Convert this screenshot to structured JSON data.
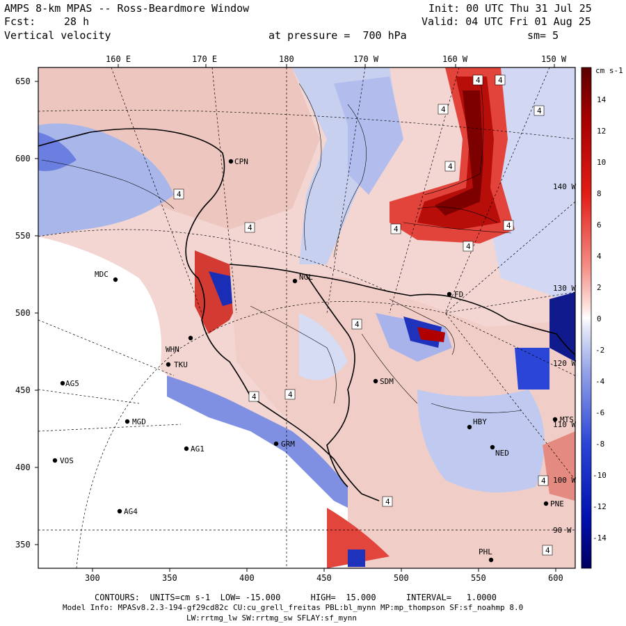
{
  "header": {
    "title": "AMPS 8-km MPAS -- Ross-Beardmore Window",
    "fcst_label": "Fcst:",
    "fcst_value": "28 h",
    "field": "Vertical velocity",
    "init": "Init: 00 UTC Thu 31 Jul 25",
    "valid": "Valid: 04 UTC Fri 01 Aug 25",
    "pressure": "at pressure =  700 hPa",
    "smooth": "sm= 5"
  },
  "axes": {
    "top_ticks": [
      "160 E",
      "170 E",
      "180",
      "170 W",
      "160 W",
      "150 W"
    ],
    "left_ticks": [
      "650",
      "600",
      "550",
      "500",
      "450",
      "400",
      "350"
    ],
    "bottom_ticks": [
      "300",
      "350",
      "400",
      "450",
      "500",
      "550",
      "600"
    ],
    "right_inner_ticks": [
      "140 W",
      "130 W",
      "120 W",
      "110 W",
      "100 W",
      "90 W"
    ]
  },
  "colorbar": {
    "units": "cm s-1",
    "labels": [
      "14",
      "12",
      "10",
      "8",
      "6",
      "4",
      "2",
      "0",
      "-2",
      "-4",
      "-6",
      "-8",
      "-10",
      "-12",
      "-14"
    ],
    "colors": {
      "pos_strong": "#8b0000",
      "pos_mid": "#e8251e",
      "pos_weak": "#f6b8b2",
      "zero": "#ffffff",
      "neg_weak": "#b7c3ec",
      "neg_mid": "#2b46d6",
      "neg_strong": "#000080"
    }
  },
  "stations": [
    {
      "name": "MDC"
    },
    {
      "name": "AG5"
    },
    {
      "name": "VOS"
    },
    {
      "name": "MGD"
    },
    {
      "name": "AG1"
    },
    {
      "name": "AG4"
    },
    {
      "name": "TKU"
    },
    {
      "name": "WHN"
    },
    {
      "name": "NGL"
    },
    {
      "name": "SDM"
    },
    {
      "name": "GRM"
    },
    {
      "name": "HBY"
    },
    {
      "name": "MTS"
    },
    {
      "name": "NED"
    },
    {
      "name": "PNE"
    },
    {
      "name": "PHL"
    },
    {
      "name": "FD"
    },
    {
      "name": "CPN"
    }
  ],
  "footer": {
    "contours": "CONTOURS:  UNITS=cm s-1  LOW= -15.000      HIGH=  15.000      INTERVAL=   1.0000",
    "model_info": "Model Info: MPASv8.2.3-194-gf29cd82c CU:cu_grell_freitas PBL:bl_mynn MP:mp_thompson SF:sf_noahmp 8.0",
    "model_info2": "LW:rrtmg_lw SW:rrtmg_sw SFLAY:sf_mynn"
  }
}
